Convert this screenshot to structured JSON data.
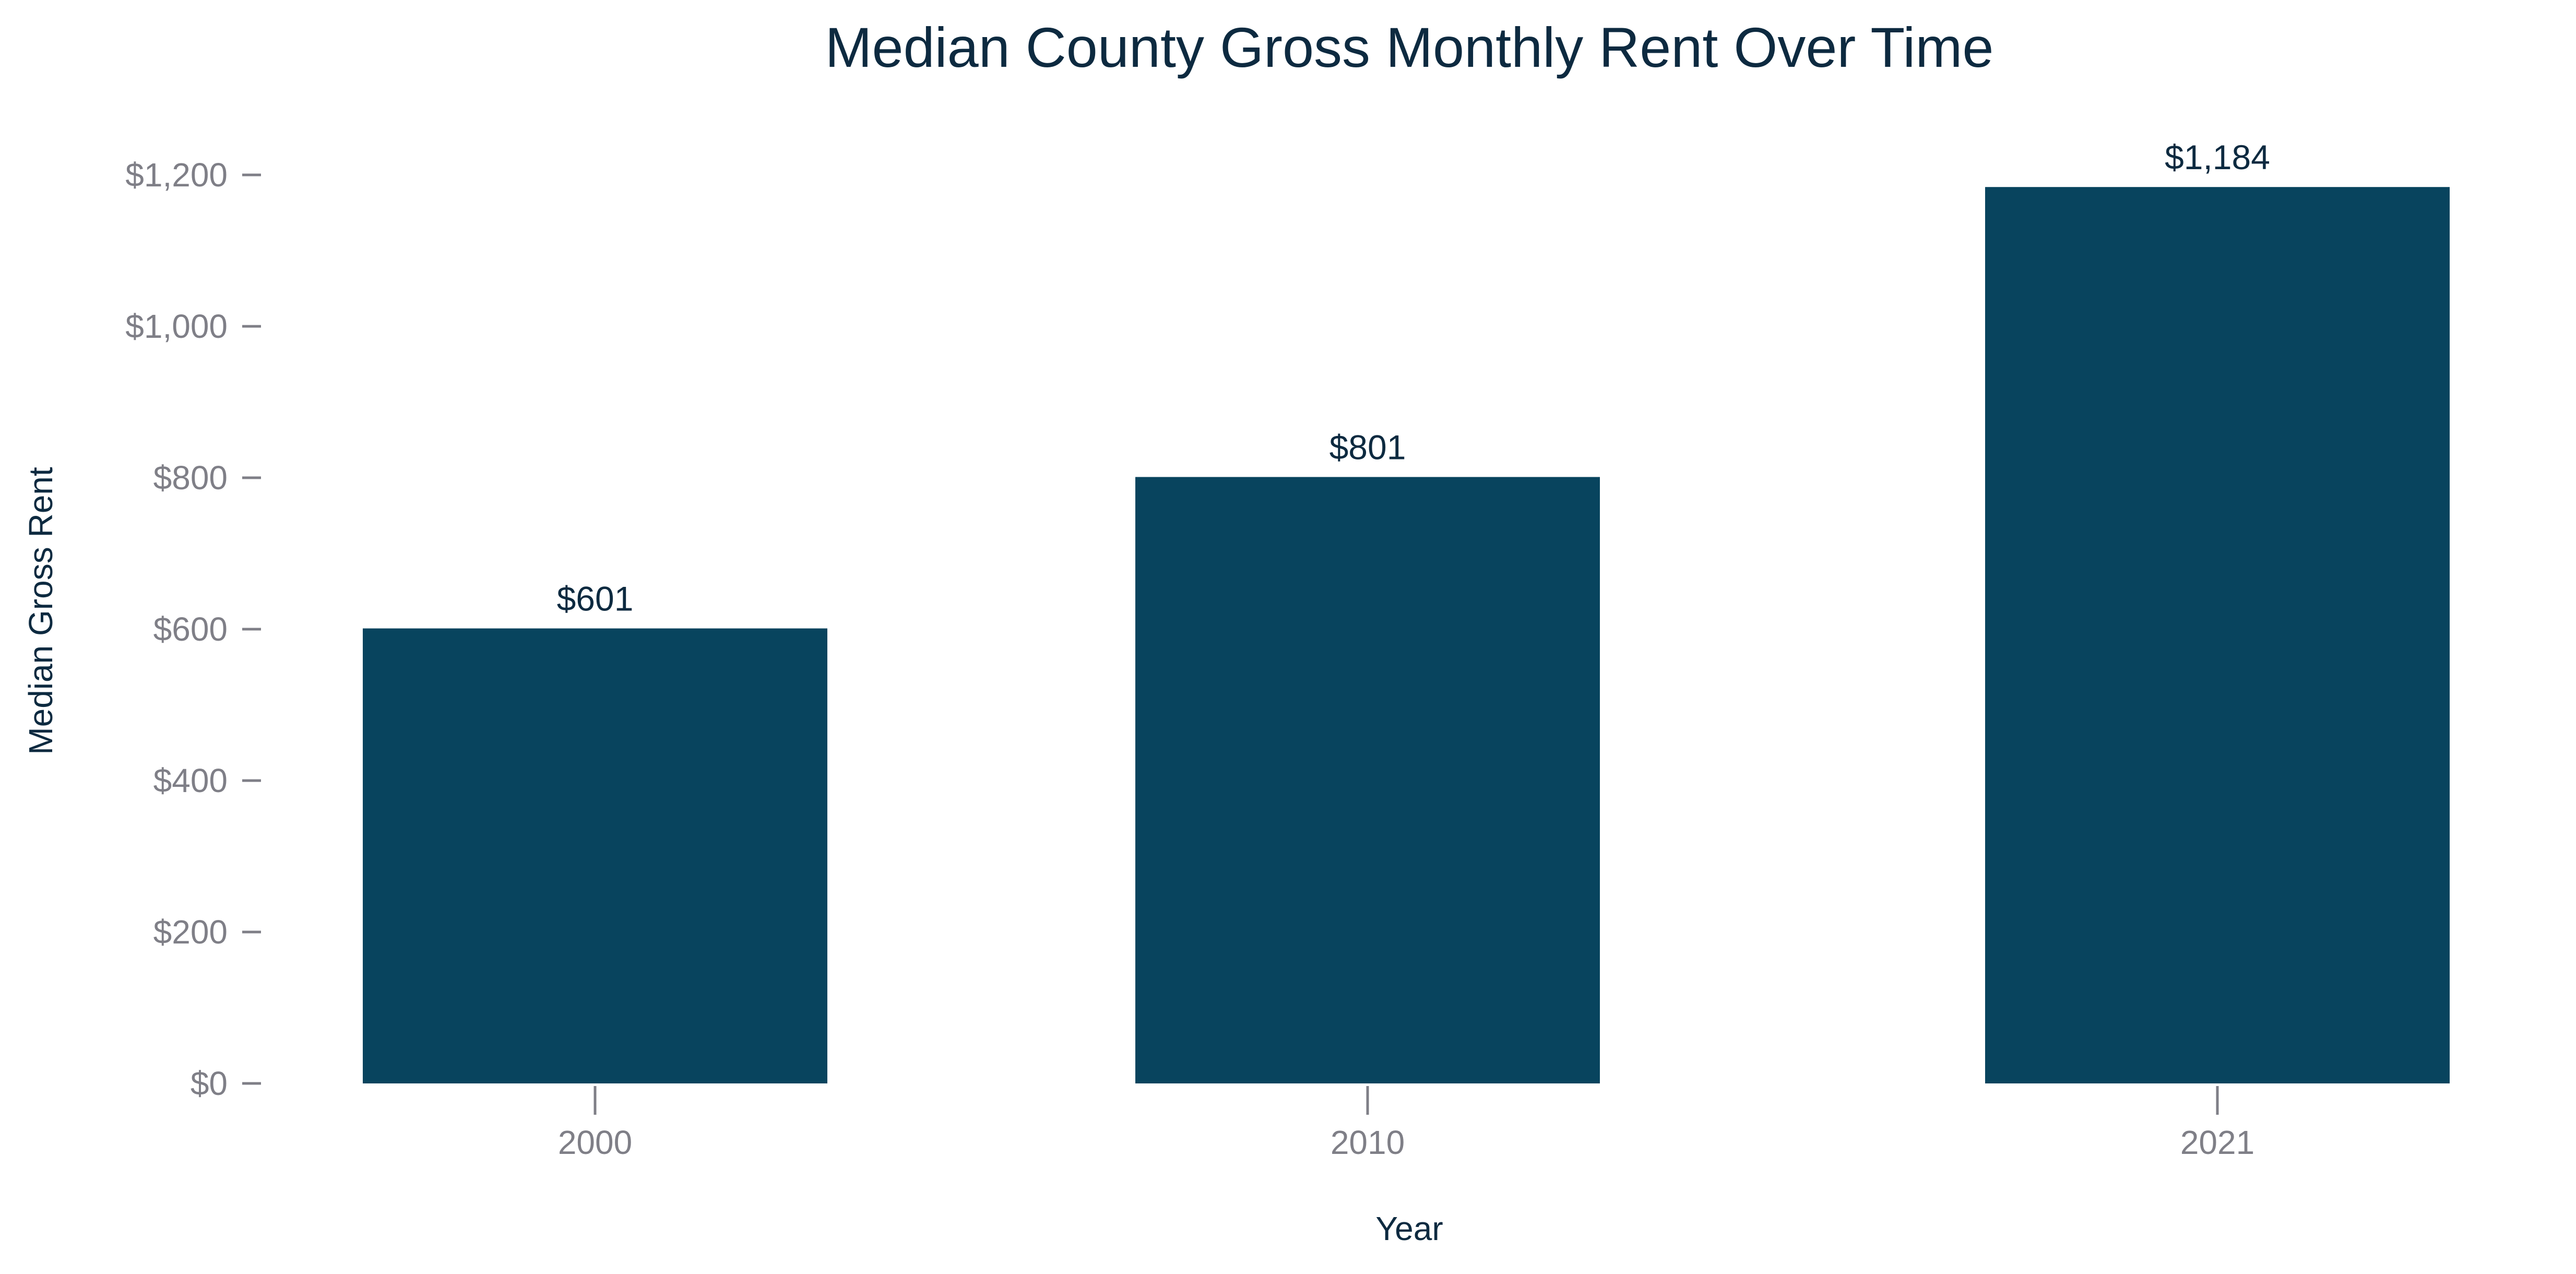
{
  "chart_data": {
    "type": "bar",
    "title": "Median County Gross Monthly Rent Over Time",
    "xlabel": "Year",
    "ylabel": "Median Gross Rent",
    "categories": [
      "2000",
      "2010",
      "2021"
    ],
    "x": [
      2000,
      2010,
      2021
    ],
    "values": [
      601,
      801,
      1184
    ],
    "data_labels": [
      "$601",
      "$801",
      "$1,184"
    ],
    "y_ticks": [
      0,
      200,
      400,
      600,
      800,
      1000,
      1200
    ],
    "y_tick_labels": [
      "$0",
      "$200",
      "$400",
      "$600",
      "$800",
      "$1,000",
      "$1,200"
    ],
    "ylim": [
      0,
      1300
    ],
    "xlim": [
      1996,
      2025
    ],
    "grid": false,
    "legend": "none",
    "bar_color": "#08445e"
  }
}
